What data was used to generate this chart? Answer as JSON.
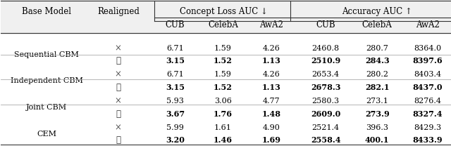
{
  "col_headers_row1": [
    "",
    "",
    "Concept Loss AUC ↓",
    "",
    "",
    "Accuracy AUC ↑",
    "",
    ""
  ],
  "col_headers_row2": [
    "Base Model",
    "Realigned",
    "CUB",
    "CelebA",
    "AwA2",
    "CUB",
    "CelebA",
    "AwA2"
  ],
  "rows": [
    [
      "Sequential CBM",
      "×",
      "6.71",
      "1.59",
      "4.26",
      "2460.8",
      "280.7",
      "8364.0"
    ],
    [
      "Sequential CBM",
      "✓",
      "3.15",
      "1.52",
      "1.13",
      "2510.9",
      "284.3",
      "8397.6"
    ],
    [
      "Independent CBM",
      "×",
      "6.71",
      "1.59",
      "4.26",
      "2653.4",
      "280.2",
      "8403.4"
    ],
    [
      "Independent CBM",
      "✓",
      "3.15",
      "1.52",
      "1.13",
      "2678.3",
      "282.1",
      "8437.0"
    ],
    [
      "Joint CBM",
      "×",
      "5.93",
      "3.06",
      "4.77",
      "2580.3",
      "273.1",
      "8276.4"
    ],
    [
      "Joint CBM",
      "✓",
      "3.67",
      "1.76",
      "1.48",
      "2609.0",
      "273.9",
      "8327.4"
    ],
    [
      "CEM",
      "×",
      "5.99",
      "1.61",
      "4.90",
      "2521.4",
      "396.3",
      "8429.3"
    ],
    [
      "CEM",
      "✓",
      "3.20",
      "1.46",
      "1.69",
      "2558.4",
      "400.1",
      "8433.9"
    ]
  ],
  "bold_rows": [
    1,
    3,
    5,
    7
  ],
  "group_separators": [
    2,
    4,
    6
  ],
  "col_span_concept": [
    2,
    4
  ],
  "col_span_accuracy": [
    5,
    7
  ],
  "bg_color": "#f5f5f5",
  "header_bg": "#e8e8e8"
}
